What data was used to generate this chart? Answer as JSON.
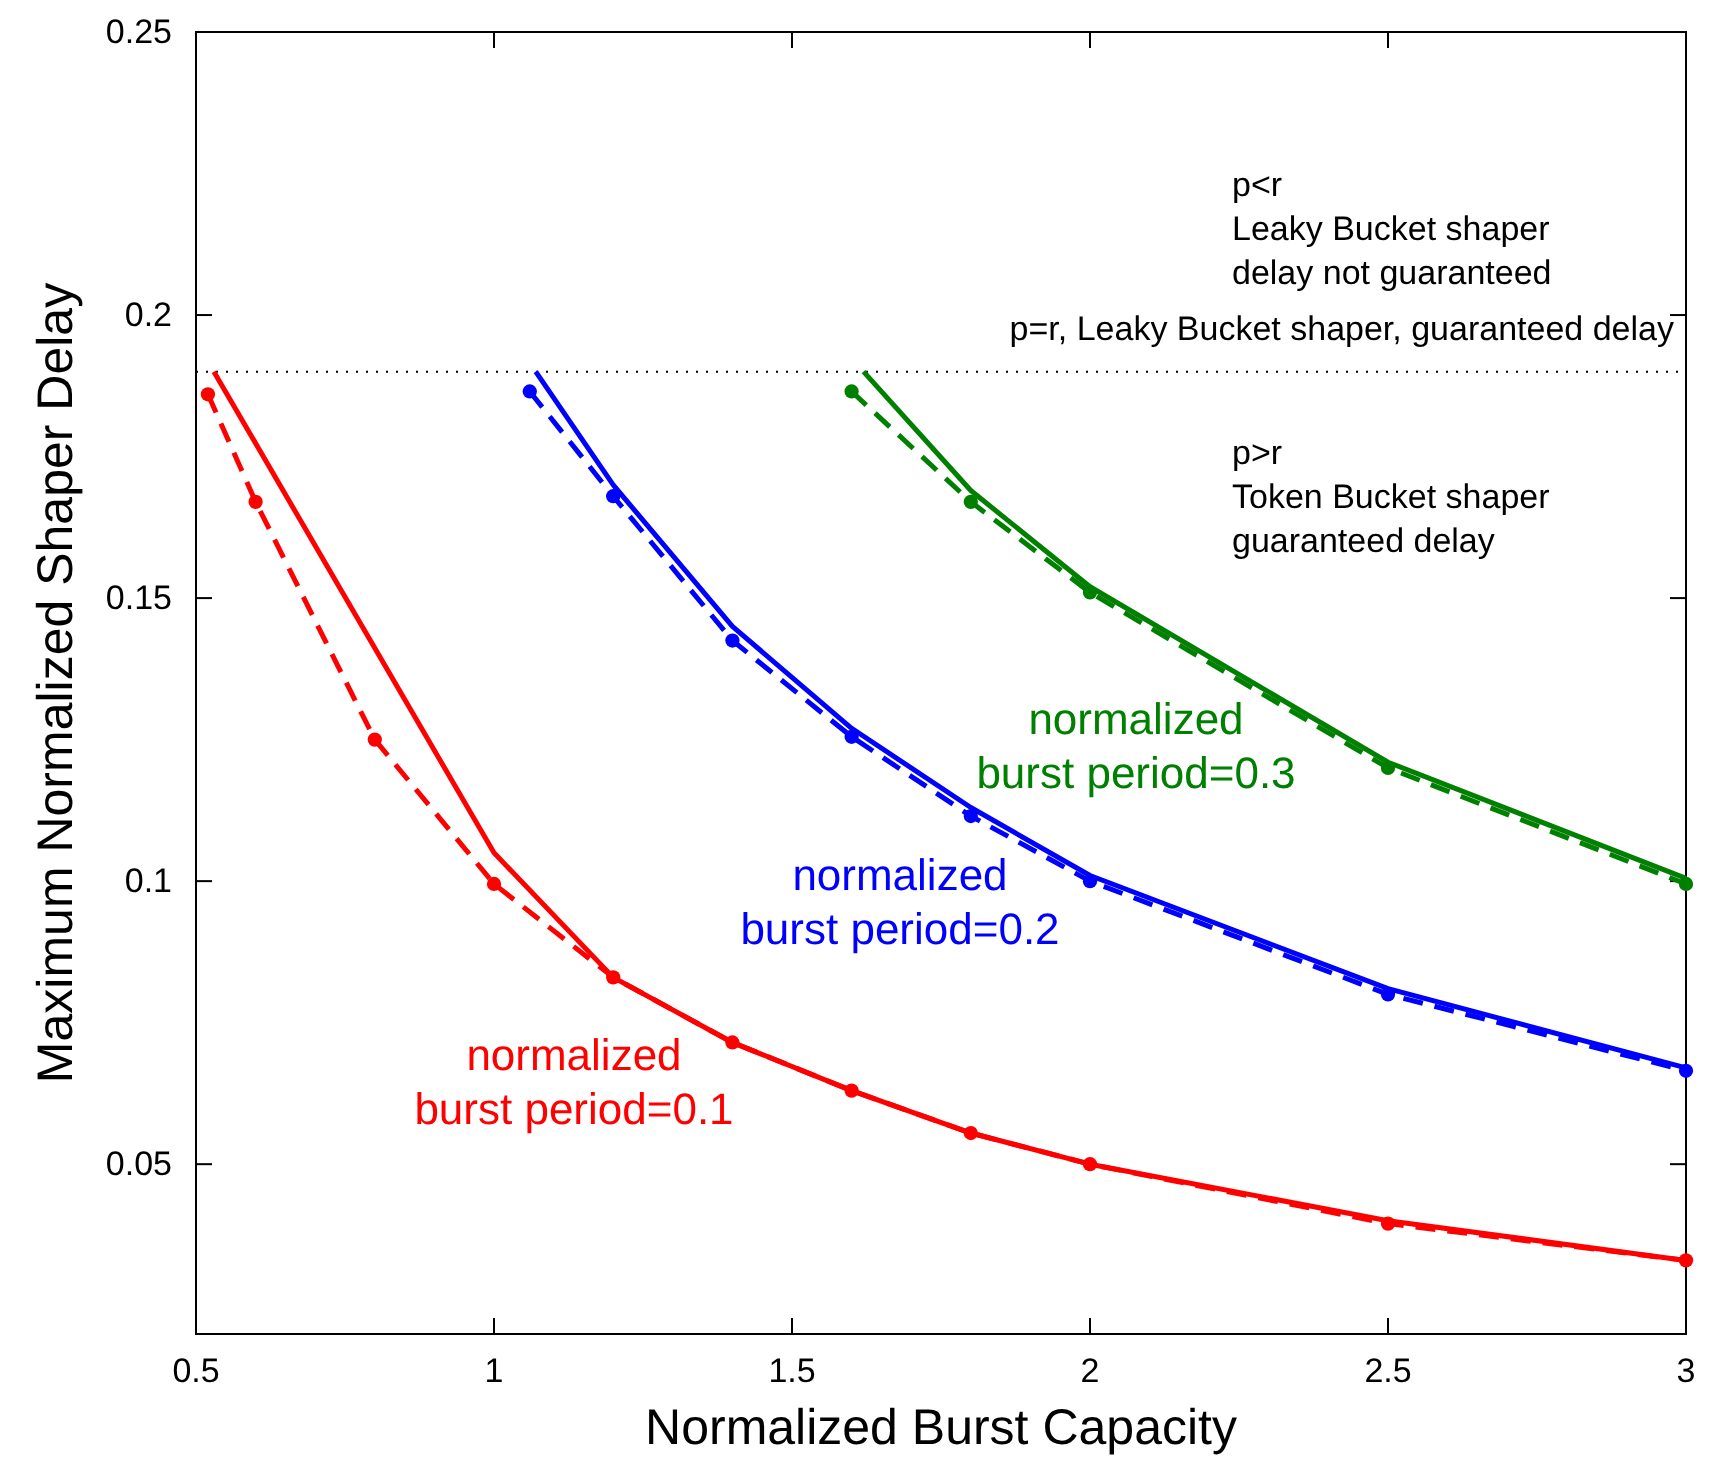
{
  "chart_data": {
    "type": "line",
    "xlabel": "Normalized Burst Capacity",
    "ylabel": "Maximum Normalized Shaper Delay",
    "xlim": [
      0.5,
      3
    ],
    "ylim": [
      0.02,
      0.25
    ],
    "xticks": [
      0.5,
      1,
      1.5,
      2,
      2.5,
      3
    ],
    "yticks": [
      0.05,
      0.1,
      0.15,
      0.2,
      0.25
    ],
    "grid": false,
    "series": [
      {
        "color": "#ff0000",
        "line_style": "dashed",
        "marker": "circle",
        "x": [
          0.52,
          0.6,
          0.8,
          1.0,
          1.2,
          1.4,
          1.6,
          1.8,
          2,
          2.5,
          3
        ],
        "values": [
          0.186,
          0.167,
          0.125,
          0.0995,
          0.083,
          0.0715,
          0.063,
          0.0555,
          0.05,
          0.0395,
          0.033
        ]
      },
      {
        "name": "normalized\nburst period=0.1",
        "color": "#ff0000",
        "line_style": "solid",
        "marker": "none",
        "x": [
          0.53,
          1.0,
          1.2,
          1.4,
          1.6,
          1.8,
          2,
          2.5,
          3
        ],
        "values": [
          0.19,
          0.105,
          0.083,
          0.0715,
          0.063,
          0.0555,
          0.05,
          0.04,
          0.033
        ]
      },
      {
        "color": "#0000ff",
        "line_style": "dashed",
        "marker": "circle",
        "x": [
          1.06,
          1.2,
          1.4,
          1.6,
          1.8,
          2,
          2.5,
          3
        ],
        "values": [
          0.1865,
          0.168,
          0.1425,
          0.1255,
          0.1115,
          0.1,
          0.08,
          0.0665
        ]
      },
      {
        "name": "normalized\nburst period=0.2",
        "color": "#0000ff",
        "line_style": "solid",
        "marker": "none",
        "x": [
          1.07,
          1.2,
          1.4,
          1.6,
          1.8,
          2,
          2.5,
          3
        ],
        "values": [
          0.19,
          0.17,
          0.145,
          0.127,
          0.113,
          0.101,
          0.081,
          0.067
        ]
      },
      {
        "color": "#008000",
        "line_style": "dashed",
        "marker": "circle",
        "x": [
          1.6,
          1.8,
          2,
          2.5,
          3
        ],
        "values": [
          0.1865,
          0.167,
          0.151,
          0.12,
          0.0995
        ]
      },
      {
        "name": "normalized\nburst period=0.3",
        "color": "#008000",
        "line_style": "solid",
        "marker": "none",
        "x": [
          1.62,
          1.8,
          2,
          2.5,
          3
        ],
        "values": [
          0.19,
          0.169,
          0.152,
          0.121,
          0.1005
        ]
      }
    ],
    "ref_lines": [
      {
        "axis": "y",
        "value": 0.19,
        "label": "p=r, Leaky Bucket shaper, guaranteed delay",
        "line_style": "dotted",
        "color": "#000000"
      }
    ],
    "annotations": [
      "p<r\nLeaky Bucket shaper\ndelay not guaranteed",
      "p>r\nToken Bucket shaper\nguaranteed delay"
    ]
  }
}
